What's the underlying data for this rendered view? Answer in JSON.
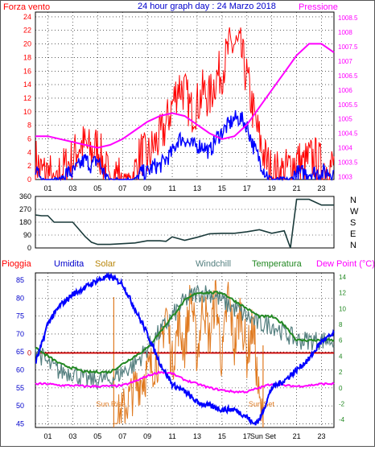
{
  "chart_data": [
    {
      "type": "line",
      "title": "24 hour graph day : 24 Marzo 2018",
      "left_axis_label": "Forza vento",
      "right_axis_label": "Pressione",
      "x_ticks": [
        "01",
        "03",
        "05",
        "07",
        "09",
        "11",
        "13",
        "15",
        "17",
        "19",
        "21",
        "23"
      ],
      "left_ticks": [
        "0",
        "2",
        "4",
        "6",
        "8",
        "10",
        "12",
        "14",
        "16",
        "18",
        "20",
        "22",
        "24"
      ],
      "right_ticks": [
        "1003",
        "1003.5",
        "1004",
        "1004.5",
        "1005",
        "1005.5",
        "1006",
        "1006.5",
        "1007",
        "1007.5",
        "1008",
        "1008.5"
      ],
      "ylim_left": [
        0,
        24.7
      ],
      "ylim_right": [
        1002.9,
        1008.7
      ],
      "colors": {
        "gust": "#ff0000",
        "wind": "#0000ff",
        "pressure": "#ff00ff",
        "title": "#0000cc",
        "grid": "#000000"
      },
      "series": [
        {
          "role": "gust",
          "x": [
            0,
            0.5,
            1,
            1.5,
            2,
            2.5,
            3,
            3.5,
            4,
            4.5,
            5,
            5.5,
            6,
            6.5,
            7,
            7.5,
            8,
            8.5,
            9,
            9.5,
            10,
            10.5,
            11,
            11.5,
            12,
            12.5,
            13,
            13.5,
            14,
            14.5,
            15,
            15.5,
            16,
            16.5,
            17,
            17.5,
            18,
            18.5,
            19,
            19.5,
            20,
            20.5,
            21,
            21.5,
            22,
            22.5,
            23,
            23.5,
            24
          ],
          "values": [
            3,
            1,
            1,
            0,
            1,
            2,
            3,
            5,
            5,
            4,
            5,
            2,
            0,
            1,
            0,
            0,
            1,
            4,
            3,
            5,
            6,
            8,
            11,
            14,
            13,
            10,
            11,
            13,
            12,
            15,
            16,
            19,
            20,
            19,
            15,
            10,
            6,
            3,
            1,
            1,
            1,
            2,
            3,
            2,
            3,
            3,
            2,
            2,
            2
          ]
        },
        {
          "role": "wind",
          "x": [
            0,
            0.5,
            1,
            1.5,
            2,
            2.5,
            3,
            3.5,
            4,
            4.5,
            5,
            5.5,
            6,
            6.5,
            7,
            7.5,
            8,
            8.5,
            9,
            9.5,
            10,
            10.5,
            11,
            11.5,
            12,
            12.5,
            13,
            13.5,
            14,
            14.5,
            15,
            15.5,
            16,
            16.5,
            17,
            17.5,
            18,
            18.5,
            19,
            19.5,
            20,
            20.5,
            21,
            21.5,
            22,
            22.5,
            23,
            23.5,
            24
          ],
          "values": [
            1,
            0,
            0,
            0,
            0,
            1,
            1,
            2,
            3,
            2,
            3,
            1,
            0,
            0,
            0,
            0,
            0,
            1,
            1,
            2,
            2,
            3,
            4,
            6,
            6,
            5,
            5,
            5,
            4,
            6,
            7,
            8,
            9,
            9,
            8,
            5,
            3,
            1,
            0,
            0,
            0,
            0,
            1,
            1,
            1,
            1,
            1,
            1,
            1
          ]
        },
        {
          "role": "pressure",
          "x": [
            0,
            1,
            2,
            3,
            4,
            5,
            6,
            7,
            8,
            9,
            10,
            11,
            12,
            13,
            14,
            15,
            16,
            17,
            18,
            19,
            20,
            21,
            22,
            23,
            24
          ],
          "values": [
            1004.4,
            1004.4,
            1004.3,
            1004.2,
            1004.1,
            1004.0,
            1004.1,
            1004.3,
            1004.6,
            1004.9,
            1005.1,
            1005.2,
            1005.1,
            1004.8,
            1004.5,
            1004.3,
            1004.4,
            1004.8,
            1005.4,
            1006.0,
            1006.6,
            1007.2,
            1007.6,
            1007.6,
            1007.3
          ]
        }
      ]
    },
    {
      "type": "line",
      "right_labels": [
        "N",
        "W",
        "S",
        "E",
        "N"
      ],
      "left_ticks": [
        "360",
        "270",
        "180",
        "90",
        "0"
      ],
      "ylim": [
        0,
        360
      ],
      "colors": {
        "direction": "#1a3a3a"
      },
      "series": [
        {
          "role": "wind-direction",
          "x": [
            0,
            0.5,
            1,
            1.5,
            2,
            2.5,
            3,
            3.5,
            4,
            4.5,
            5,
            6,
            7,
            8,
            9,
            10,
            10.5,
            11,
            12,
            13,
            14,
            15,
            16,
            17,
            18,
            19,
            20,
            20.5,
            21,
            22,
            23,
            24
          ],
          "values": [
            230,
            225,
            225,
            180,
            180,
            180,
            180,
            130,
            80,
            40,
            25,
            25,
            30,
            35,
            50,
            50,
            65,
            60,
            70,
            90,
            90,
            95,
            95,
            110,
            110,
            120,
            120,
            0,
            340,
            340,
            300,
            300
          ]
        }
      ]
    },
    {
      "type": "line",
      "labels": {
        "rain": "Pioggia",
        "humidity": "Umidita",
        "solar": "Solar",
        "windchill": "Windchill",
        "temperature": "Temperatura",
        "dewpoint": "Dew Point (°C)"
      },
      "annotations": {
        "sunrise": "Sun Rise",
        "sunset": "Sun Set",
        "sunset_axis": "Sun Set"
      },
      "x_ticks": [
        "01",
        "03",
        "05",
        "07",
        "09",
        "11",
        "13",
        "15",
        "17",
        "21",
        "23"
      ],
      "left_ticks": [
        "45",
        "50",
        "55",
        "60",
        "65",
        "70",
        "75",
        "80",
        "85"
      ],
      "right_ticks": [
        "-4",
        "-2",
        "0",
        "2",
        "4",
        "6",
        "8",
        "10",
        "12",
        "14"
      ],
      "rain_zero_label": "0",
      "ylim_left": [
        44,
        87
      ],
      "ylim_right": [
        -5,
        14.5
      ],
      "colors": {
        "rain": "#ff0000",
        "humidity": "#0000ff",
        "solar": "#e07a20",
        "windchill": "#558080",
        "temperature": "#228822",
        "dewpoint": "#ff00ff",
        "zero_line": "#cc0000"
      },
      "series": [
        {
          "role": "humidity",
          "x": [
            0,
            0.5,
            1,
            2,
            3,
            4,
            5,
            6,
            7,
            8,
            9,
            10,
            11,
            12,
            13,
            14,
            15,
            16,
            17,
            17.5,
            18,
            19,
            20,
            21,
            22,
            23,
            24
          ],
          "values": [
            62,
            67,
            73,
            78,
            81,
            83,
            85,
            86,
            84,
            77,
            70,
            62,
            56,
            54,
            51,
            50,
            49,
            49,
            47,
            45,
            46,
            55,
            57,
            60,
            63,
            68,
            70
          ]
        },
        {
          "role": "windchill",
          "x": [
            0,
            1,
            2,
            3,
            4,
            5,
            6,
            7,
            8,
            9,
            10,
            11,
            12,
            13,
            14,
            15,
            16,
            17,
            18,
            19,
            20,
            21,
            22,
            23,
            24
          ],
          "values": [
            5,
            3,
            2,
            2,
            1,
            1,
            1,
            2,
            3,
            5,
            7,
            9,
            11,
            12,
            12,
            11,
            10,
            9,
            8,
            8,
            7,
            6,
            6,
            6,
            6
          ]
        },
        {
          "role": "temperature",
          "x": [
            0,
            1,
            2,
            3,
            4,
            5,
            6,
            7,
            8,
            9,
            10,
            11,
            12,
            13,
            14,
            15,
            16,
            17,
            18,
            19,
            20,
            21,
            22,
            23,
            24
          ],
          "values": [
            5,
            4,
            3,
            2.5,
            2,
            2,
            2,
            3,
            4,
            5,
            7,
            9,
            11,
            12,
            12,
            12,
            11,
            10,
            9,
            9,
            8,
            6,
            6,
            6,
            6
          ]
        },
        {
          "role": "dewpoint",
          "x": [
            0,
            1,
            2,
            3,
            4,
            5,
            6,
            7,
            8,
            9,
            10,
            11,
            12,
            13,
            14,
            15,
            16,
            17,
            18,
            19,
            20,
            21,
            22,
            23,
            24
          ],
          "values": [
            0.5,
            0.5,
            0.3,
            0.3,
            0.2,
            0.2,
            0.2,
            0.3,
            0.8,
            1.5,
            2,
            1.8,
            1,
            0.5,
            0,
            -0.3,
            -0.5,
            -0.5,
            0,
            0.5,
            0.3,
            0.2,
            0.3,
            0.5,
            0.5
          ]
        },
        {
          "role": "solar",
          "x": [
            6.3,
            7,
            8,
            9,
            10,
            10.5,
            11,
            11.5,
            12,
            12.5,
            13,
            13.5,
            14,
            14.5,
            15,
            15.5,
            16,
            16.5,
            17,
            17.5,
            18,
            18.3
          ],
          "values": [
            -4.5,
            -3,
            0,
            2,
            4,
            10,
            3,
            8,
            5,
            12,
            4,
            11,
            6,
            12,
            3,
            12,
            5,
            10,
            4,
            8,
            -2,
            -4.5
          ]
        }
      ]
    }
  ]
}
